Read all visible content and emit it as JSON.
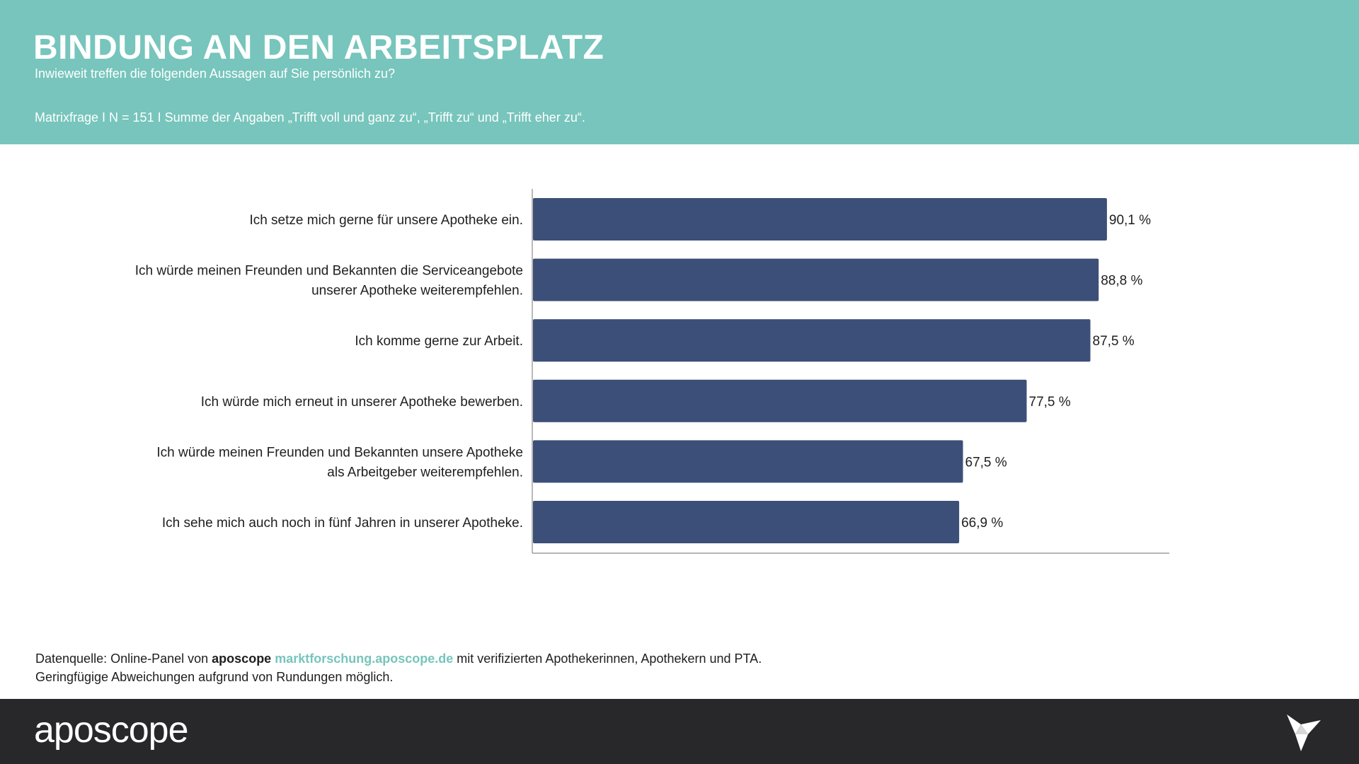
{
  "header": {
    "title": "BINDUNG AN DEN ARBEITSPLATZ",
    "subtitle": "Inwieweit treffen die folgenden Aussagen auf Sie persönlich zu?",
    "note": "Matrixfrage I N = 151 I Summe der Angaben „Trifft voll und ganz zu“, „Trifft zu“ und „Trifft eher zu“."
  },
  "colors": {
    "header_bg": "#77c5bc",
    "bar": "#3c4f78",
    "footer_bg": "#28282b",
    "link": "#77c5bc"
  },
  "chart_data": {
    "type": "bar",
    "orientation": "horizontal",
    "title": "",
    "xlabel": "",
    "ylabel": "",
    "xlim": [
      0,
      100
    ],
    "value_suffix": " %",
    "categories": [
      [
        "Ich setze mich gerne für unsere Apotheke ein."
      ],
      [
        "Ich würde meinen Freunden und Bekannten die Serviceangebote",
        "unserer Apotheke weiterempfehlen."
      ],
      [
        "Ich komme gerne zur Arbeit."
      ],
      [
        "Ich würde mich erneut in unserer Apotheke bewerben."
      ],
      [
        "Ich würde meinen Freunden und Bekannten unsere Apotheke",
        "als Arbeitgeber weiterempfehlen."
      ],
      [
        "Ich sehe mich auch noch in fünf Jahren in unserer Apotheke."
      ]
    ],
    "values": [
      90.1,
      88.8,
      87.5,
      77.5,
      67.5,
      66.9
    ],
    "value_labels": [
      "90,1 %",
      "88,8 %",
      "87,5 %",
      "77,5 %",
      "67,5 %",
      "66,9 %"
    ]
  },
  "footnote": {
    "prefix": "Datenquelle: Online-Panel von ",
    "brand": "aposcope",
    "link": "marktforschung.aposcope.de",
    "suffix": " mit verifizierten Apothekerinnen, Apothekern und PTA.",
    "line2": "Geringfügige Abweichungen aufgrund von Rundungen möglich."
  },
  "footer": {
    "logo": "aposcope",
    "logo_icon": "origami-bird-icon"
  }
}
